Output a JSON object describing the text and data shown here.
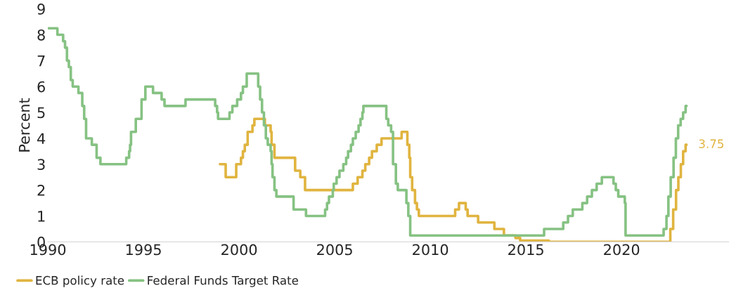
{
  "chart_data": {
    "type": "step",
    "ylabel": "Percent",
    "xlim": [
      1990,
      2025.6
    ],
    "xticks": [
      1990,
      1995,
      2000,
      2005,
      2010,
      2015,
      2020
    ],
    "ylim": [
      0,
      9
    ],
    "yticks": [
      0,
      1,
      2,
      3,
      4,
      5,
      6,
      7,
      8,
      9
    ],
    "grid": false,
    "legend": "bottom left",
    "series": [
      {
        "name": "ECB policy rate",
        "color": "#e0b43f",
        "x": [
          1999.0,
          1999.3,
          1999.85,
          2000.1,
          2000.2,
          2000.3,
          2000.45,
          2000.7,
          2000.8,
          2001.35,
          2001.65,
          2001.7,
          2001.85,
          2002.93,
          2003.2,
          2003.45,
          2005.95,
          2006.2,
          2006.45,
          2006.6,
          2006.8,
          2006.95,
          2007.2,
          2007.45,
          2008.5,
          2008.8,
          2008.9,
          2008.95,
          2009.05,
          2009.2,
          2009.3,
          2009.4,
          2011.3,
          2011.5,
          2011.85,
          2011.95,
          2012.5,
          2013.35,
          2013.85,
          2014.45,
          2014.7,
          2016.2,
          2022.55,
          2022.7,
          2022.85,
          2022.97,
          2023.1,
          2023.22,
          2023.35,
          2023.4
        ],
        "values": [
          3.0,
          2.5,
          3.0,
          3.25,
          3.5,
          3.75,
          4.25,
          4.5,
          4.75,
          4.5,
          4.25,
          3.75,
          3.25,
          2.75,
          2.5,
          2.0,
          2.25,
          2.5,
          2.75,
          3.0,
          3.25,
          3.5,
          3.75,
          4.0,
          4.25,
          3.75,
          3.25,
          2.5,
          2.0,
          1.5,
          1.25,
          1.0,
          1.25,
          1.5,
          1.25,
          1.0,
          0.75,
          0.5,
          0.25,
          0.15,
          0.05,
          0.0,
          0.5,
          1.25,
          2.0,
          2.5,
          3.0,
          3.5,
          3.75,
          3.75
        ]
      },
      {
        "name": "Federal Funds Target Rate",
        "color": "#86c283",
        "x": [
          1990.0,
          1990.5,
          1990.8,
          1990.9,
          1991.0,
          1991.1,
          1991.2,
          1991.3,
          1991.6,
          1991.8,
          1991.9,
          1992.0,
          1992.3,
          1992.55,
          1992.75,
          1994.1,
          1994.25,
          1994.3,
          1994.35,
          1994.6,
          1994.9,
          1995.1,
          1995.5,
          1995.95,
          1996.1,
          1997.2,
          1998.75,
          1998.85,
          1998.9,
          1999.5,
          1999.65,
          1999.9,
          2000.1,
          2000.2,
          2000.4,
          2001.0,
          2001.1,
          2001.2,
          2001.3,
          2001.4,
          2001.5,
          2001.65,
          2001.7,
          2001.75,
          2001.85,
          2001.95,
          2002.85,
          2003.5,
          2004.5,
          2004.6,
          2004.7,
          2004.9,
          2004.95,
          2005.1,
          2005.25,
          2005.45,
          2005.6,
          2005.7,
          2005.85,
          2005.95,
          2006.1,
          2006.25,
          2006.35,
          2006.45,
          2006.5,
          2007.7,
          2007.8,
          2007.95,
          2008.05,
          2008.2,
          2008.3,
          2008.75,
          2008.85,
          2008.95,
          2015.95,
          2016.95,
          2017.2,
          2017.45,
          2017.95,
          2018.2,
          2018.45,
          2018.7,
          2018.97,
          2019.58,
          2019.7,
          2019.83,
          2020.17,
          2020.21,
          2022.2,
          2022.35,
          2022.45,
          2022.57,
          2022.72,
          2022.84,
          2022.96,
          2023.09,
          2023.22,
          2023.35,
          2023.4
        ],
        "values": [
          8.25,
          8.0,
          7.75,
          7.5,
          7.0,
          6.75,
          6.25,
          6.0,
          5.75,
          5.25,
          4.75,
          4.0,
          3.75,
          3.25,
          3.0,
          3.25,
          3.5,
          3.75,
          4.25,
          4.75,
          5.5,
          6.0,
          5.75,
          5.5,
          5.25,
          5.5,
          5.25,
          5.0,
          4.75,
          5.0,
          5.25,
          5.5,
          5.75,
          6.0,
          6.5,
          6.0,
          5.5,
          5.0,
          4.5,
          4.0,
          3.75,
          3.5,
          3.0,
          2.5,
          2.0,
          1.75,
          1.25,
          1.0,
          1.25,
          1.5,
          1.75,
          2.0,
          2.25,
          2.5,
          2.75,
          3.0,
          3.25,
          3.5,
          3.75,
          4.0,
          4.25,
          4.5,
          4.75,
          5.0,
          5.25,
          4.75,
          4.5,
          4.25,
          3.0,
          2.25,
          2.0,
          1.5,
          1.0,
          0.25,
          0.5,
          0.75,
          1.0,
          1.25,
          1.5,
          1.75,
          2.0,
          2.25,
          2.5,
          2.25,
          2.0,
          1.75,
          1.5,
          0.25,
          0.5,
          1.0,
          1.75,
          2.5,
          3.25,
          4.0,
          4.5,
          4.75,
          5.0,
          5.25,
          5.25
        ]
      }
    ],
    "annotations": [
      {
        "text": "3.75",
        "x": 2023.4,
        "y": 3.75
      }
    ]
  }
}
